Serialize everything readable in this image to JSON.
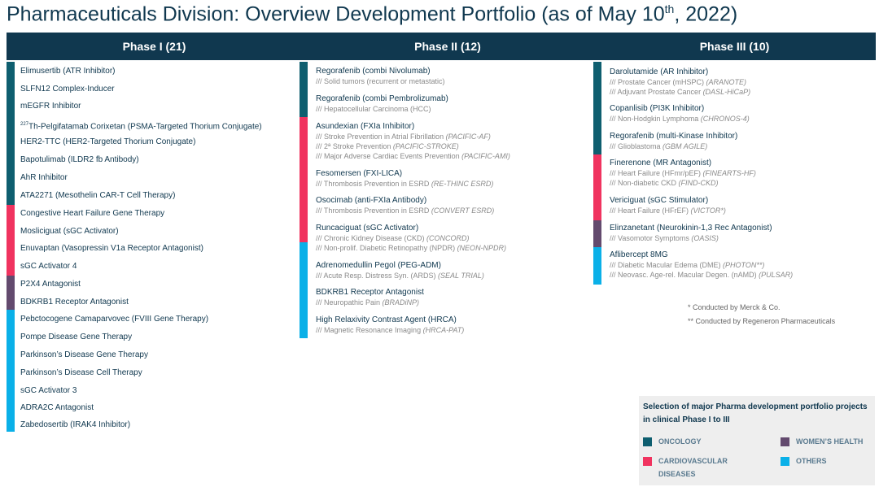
{
  "title": {
    "main": "Pharmaceuticals Division: Overview Development Portfolio (as of May 10",
    "sup": "th",
    "tail": ", 2022)"
  },
  "colors": {
    "oncology": "#0e5e6f",
    "cardiovascular": "#f0335f",
    "womens_health": "#634a6e",
    "others": "#0ab0e8",
    "header": "#10384f"
  },
  "phases": [
    {
      "label": "Phase I (21)"
    },
    {
      "label": "Phase II (12)"
    },
    {
      "label": "Phase III (10)"
    }
  ],
  "phase1": [
    {
      "name": "Elimusertib (ATR Inhibitor)"
    },
    {
      "name": "SLFN12 Complex-Inducer"
    },
    {
      "name": "mEGFR Inhibitor"
    },
    {
      "sup": "227",
      "name": "Th-Pelgifatamab Corixetan (PSMA-Targeted Thorium Conjugate)"
    },
    {
      "name": "HER2-TTC (HER2-Targeted Thorium Conjugate)"
    },
    {
      "name": "Bapotulimab (ILDR2 fb Antibody)"
    },
    {
      "name": "AhR Inhibitor"
    },
    {
      "name": "ATA2271 (Mesothelin CAR-T Cell Therapy)"
    },
    {
      "name": "Congestive Heart Failure Gene Therapy"
    },
    {
      "name": "Mosliciguat (sGC Activator)"
    },
    {
      "name": "Enuvaptan (Vasopressin V1a Receptor Antagonist)"
    },
    {
      "name": "sGC Activator 4"
    },
    {
      "name": "P2X4 Antagonist"
    },
    {
      "name": "BDKRB1 Receptor Antagonist"
    },
    {
      "name": "Pebctocogene Camaparvovec (FVIII Gene Therapy)"
    },
    {
      "name": "Pompe Disease Gene Therapy"
    },
    {
      "name": "Parkinson’s Disease Gene Therapy"
    },
    {
      "name": "Parkinson’s Disease Cell Therapy"
    },
    {
      "name": "sGC Activator 3"
    },
    {
      "name": "ADRA2C Antagonist"
    },
    {
      "name": "Zabedosertib (IRAK4 Inhibitor)"
    }
  ],
  "phase2": [
    {
      "name": "Regorafenib (combi Nivolumab)",
      "ind": [
        {
          "t": "/// Solid tumors (recurrent or metastatic)",
          "i": ""
        }
      ]
    },
    {
      "name": "Regorafenib (combi Pembrolizumab)",
      "ind": [
        {
          "t": "/// Hepatocellular Carcinoma (HCC)",
          "i": ""
        }
      ]
    },
    {
      "name": "Asundexian (FXIa Inhibitor)",
      "ind": [
        {
          "t": "/// Stroke Prevention in Atrial Fibrillation ",
          "i": "(PACIFIC-AF)"
        },
        {
          "t": "/// 2ª Stroke Prevention ",
          "i": "(PACIFIC-STROKE)"
        },
        {
          "t": "/// Major Adverse Cardiac Events Prevention ",
          "i": "(PACIFIC-AMI)"
        }
      ]
    },
    {
      "name": "Fesomersen (FXI-LICA)",
      "ind": [
        {
          "t": "/// Thrombosis Prevention in ESRD ",
          "i": "(RE-THINC ESRD)"
        }
      ]
    },
    {
      "name": "Osocimab (anti-FXIa Antibody)",
      "ind": [
        {
          "t": "/// Thrombosis Prevention in ESRD ",
          "i": "(CONVERT ESRD)"
        }
      ]
    },
    {
      "name": "Runcaciguat (sGC Activator)",
      "ind": [
        {
          "t": "/// Chronic Kidney Disease (CKD) ",
          "i": "(CONCORD)"
        },
        {
          "t": "/// Non-prolif. Diabetic Retinopathy (NPDR) ",
          "i": "(NEON-NPDR)"
        }
      ]
    },
    {
      "name": "Adrenomedullin Pegol (PEG-ADM)",
      "ind": [
        {
          "t": "/// Acute Resp. Distress Syn. (ARDS) ",
          "i": "(SEAL TRIAL)"
        }
      ]
    },
    {
      "name": "BDKRB1 Receptor Antagonist",
      "ind": [
        {
          "t": "/// Neuropathic Pain ",
          "i": "(BRADiNP)"
        }
      ]
    },
    {
      "name": "High Relaxivity Contrast Agent (HRCA)",
      "ind": [
        {
          "t": "/// Magnetic Resonance Imaging ",
          "i": "(HRCA-PAT)"
        }
      ]
    }
  ],
  "phase3": [
    {
      "name": "Darolutamide (AR Inhibitor)",
      "ind": [
        {
          "t": "/// Prostate Cancer (mHSPC) ",
          "i": "(ARANOTE)"
        },
        {
          "t": "/// Adjuvant Prostate Cancer ",
          "i": "(DASL-HiCaP)"
        }
      ]
    },
    {
      "name": "Copanlisib (PI3K Inhibitor)",
      "ind": [
        {
          "t": "/// Non-Hodgkin Lymphoma ",
          "i": "(CHRONOS-4)"
        }
      ]
    },
    {
      "name": "Regorafenib (multi-Kinase Inhibitor)",
      "ind": [
        {
          "t": "/// Glioblastoma ",
          "i": "(GBM AGILE)"
        }
      ]
    },
    {
      "name": "Finerenone (MR Antagonist)",
      "ind": [
        {
          "t": "/// Heart Failure (HFmr/pEF) ",
          "i": "(FINEARTS-HF)"
        },
        {
          "t": "/// Non-diabetic CKD ",
          "i": "(FIND-CKD)"
        }
      ]
    },
    {
      "name": "Vericiguat (sGC Stimulator)",
      "ind": [
        {
          "t": "/// Heart Failure (HFrEF) ",
          "i": "(VICTOR*)"
        }
      ]
    },
    {
      "name": "Elinzanetant (Neurokinin-1,3 Rec Antagonist)",
      "ind": [
        {
          "t": "/// Vasomotor Symptoms ",
          "i": "(OASIS)"
        }
      ]
    },
    {
      "name": "Aflibercept 8MG",
      "ind": [
        {
          "t": "/// Diabetic Macular Edema (DME) ",
          "i": "(PHOTON**)"
        },
        {
          "t": "/// Neovasc. Age-rel. Macular Degen. (nAMD) ",
          "i": "(PULSAR)"
        }
      ]
    }
  ],
  "footnotes": [
    "*  Conducted by Merck & Co.",
    "** Conducted by Regeneron Pharmaceuticals"
  ],
  "legend": {
    "title": "Selection of major Pharma development portfolio projects in clinical Phase I to III",
    "oncology": "ONCOLOGY",
    "cardiovascular_1": "CARDIOVASCULAR",
    "cardiovascular_2": "DISEASES",
    "womens_health": "WOMEN’S HEALTH",
    "others": "OTHERS"
  }
}
